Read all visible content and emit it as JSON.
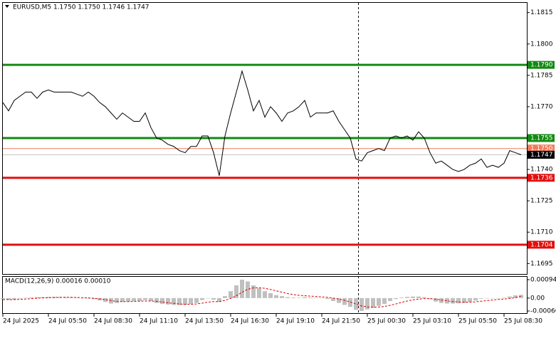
{
  "chart_data": [
    {
      "type": "line",
      "title": "EURUSD,M5  1.1750 1.1750 1.1746 1.1747",
      "color": "#000000",
      "categories": [
        "24 Jul 2025",
        null,
        null,
        null,
        null,
        null,
        null,
        null,
        "24 Jul 05:50",
        null,
        null,
        null,
        null,
        null,
        null,
        null,
        "24 Jul 08:30",
        null,
        null,
        null,
        null,
        null,
        null,
        null,
        "24 Jul 11:10",
        null,
        null,
        null,
        null,
        null,
        null,
        null,
        "24 Jul 13:50",
        null,
        null,
        null,
        null,
        null,
        null,
        null,
        "24 Jul 16:30",
        null,
        null,
        null,
        null,
        null,
        null,
        null,
        "24 Jul 19:10",
        null,
        null,
        null,
        null,
        null,
        null,
        null,
        "24 Jul 21:50",
        null,
        null,
        null,
        null,
        null,
        null,
        null,
        "25 Jul 00:30",
        null,
        null,
        null,
        null,
        null,
        null,
        null,
        "25 Jul 03:10",
        null,
        null,
        null,
        null,
        null,
        null,
        null,
        "25 Jul 05:50",
        null,
        null,
        null,
        null,
        null,
        null,
        null,
        "25 Jul 08:30",
        null,
        null,
        null
      ],
      "values": [
        1.1772,
        1.1768,
        1.1773,
        1.1775,
        1.1777,
        1.1777,
        1.1774,
        1.1777,
        1.1778,
        1.1777,
        1.1777,
        1.1777,
        1.1777,
        1.1776,
        1.1775,
        1.1777,
        1.1775,
        1.1772,
        1.177,
        1.1767,
        1.1764,
        1.1767,
        1.1765,
        1.1763,
        1.1763,
        1.1767,
        1.176,
        1.1755,
        1.1754,
        1.1752,
        1.1751,
        1.1749,
        1.1748,
        1.1751,
        1.1751,
        1.1756,
        1.1756,
        1.1748,
        1.1737,
        1.1756,
        1.1767,
        1.1777,
        1.1787,
        1.1778,
        1.1768,
        1.1773,
        1.1765,
        1.177,
        1.1767,
        1.1763,
        1.1767,
        1.1768,
        1.177,
        1.1773,
        1.1765,
        1.1767,
        1.1767,
        1.1767,
        1.1768,
        1.1763,
        1.1759,
        1.1755,
        1.1745,
        1.1744,
        1.1748,
        1.1749,
        1.175,
        1.1749,
        1.1755,
        1.1756,
        1.1755,
        1.1756,
        1.1754,
        1.1758,
        1.1755,
        1.1748,
        1.1743,
        1.1744,
        1.1742,
        1.174,
        1.1739,
        1.174,
        1.1742,
        1.1743,
        1.1745,
        1.1741,
        1.1742,
        1.1741,
        1.1743,
        1.1749,
        1.1748,
        1.1747
      ],
      "ylim": [
        1.169,
        1.182
      ],
      "yticks": [
        1.1815,
        {
          "value": 1.18,
          "label": "1.1800"
        },
        1.1785,
        {
          "value": 1.177,
          "label": "1.1770"
        },
        1.1755,
        {
          "value": 1.174,
          "label": "1.1740"
        },
        1.1725,
        {
          "value": 1.171,
          "label": "1.1710"
        },
        1.1695
      ],
      "levels": [
        {
          "value": 1.179,
          "label": "1.1790",
          "color": "#138a13",
          "thick": true
        },
        {
          "value": 1.1755,
          "label": "1.1755",
          "color": "#138a13",
          "thick": true
        },
        {
          "value": 1.175,
          "label": "1.1750",
          "color": "#f07a5a",
          "thick": false
        },
        {
          "value": 1.1747,
          "label": "1.1747",
          "color": "#c8c8c8",
          "box_color": "#000000",
          "thick": false
        },
        {
          "value": 1.1736,
          "label": "1.1736",
          "color": "#e01010",
          "thick": true
        },
        {
          "value": 1.1704,
          "label": "1.1704",
          "color": "#e01010",
          "thick": true
        }
      ]
    },
    {
      "type": "bar",
      "title": "MACD(12,26,9) 0.00016 0.00010",
      "color": "#c0c0c0",
      "signal_color": "#e00000",
      "values": [
        -5e-05,
        -0.0001,
        -8e-05,
        -3e-05,
        2e-05,
        4e-05,
        5e-05,
        5e-05,
        6e-05,
        6e-05,
        5e-05,
        4e-05,
        3e-05,
        2e-05,
        0,
        -3e-05,
        -6e-05,
        -0.00012,
        -0.0002,
        -0.00028,
        -0.00025,
        -0.0002,
        -0.00018,
        -0.00015,
        -0.00015,
        -0.0001,
        -0.00015,
        -0.00025,
        -0.0003,
        -0.00033,
        -0.00035,
        -0.00036,
        -0.00035,
        -0.0003,
        -0.00025,
        -0.0001,
        0,
        -8e-05,
        -0.0002,
        0.0001,
        0.00035,
        0.00065,
        0.00094,
        0.00085,
        0.00065,
        0.0005,
        0.00035,
        0.00025,
        0.00015,
        0.0001,
        5e-05,
        3e-05,
        2e-05,
        5e-05,
        3e-05,
        2e-05,
        0,
        -5e-05,
        -0.00015,
        -0.00025,
        -0.00035,
        -0.00045,
        -0.0006,
        -0.00066,
        -0.00058,
        -0.0005,
        -0.0004,
        -0.0003,
        -0.00015,
        -5e-05,
        3e-05,
        6e-05,
        8e-05,
        8e-05,
        5e-05,
        -5e-05,
        -0.00018,
        -0.00025,
        -0.00028,
        -0.00028,
        -0.00027,
        -0.00025,
        -0.0002,
        -0.00012,
        -3e-05,
        -2e-05,
        0,
        -2e-05,
        2e-05,
        8e-05,
        0.00014,
        0.00016
      ],
      "signal": [
        -8e-05,
        -8e-05,
        -8e-05,
        -7e-05,
        -5e-05,
        -3e-05,
        -1e-05,
        1e-05,
        2e-05,
        3e-05,
        4e-05,
        4e-05,
        4e-05,
        3e-05,
        2e-05,
        1e-05,
        -1e-05,
        -4e-05,
        -8e-05,
        -0.00013,
        -0.00017,
        -0.00018,
        -0.00018,
        -0.00017,
        -0.00016,
        -0.00015,
        -0.00015,
        -0.00017,
        -0.0002,
        -0.00024,
        -0.00027,
        -0.0003,
        -0.00032,
        -0.00032,
        -0.0003,
        -0.00026,
        -0.00021,
        -0.00018,
        -0.00018,
        -0.00012,
        -2e-05,
        0.00012,
        0.0003,
        0.00045,
        0.00052,
        0.00053,
        0.0005,
        0.00044,
        0.00037,
        0.0003,
        0.00023,
        0.00018,
        0.00014,
        0.00012,
        0.0001,
        8e-05,
        6e-05,
        4e-05,
        0,
        -5e-05,
        -0.00012,
        -0.0002,
        -0.0003,
        -0.0004,
        -0.00045,
        -0.00047,
        -0.00046,
        -0.00043,
        -0.00037,
        -0.0003,
        -0.00022,
        -0.00015,
        -9e-05,
        -5e-05,
        -3e-05,
        -3e-05,
        -6e-05,
        -0.0001,
        -0.00014,
        -0.00018,
        -0.0002,
        -0.00021,
        -0.00021,
        -0.00019,
        -0.00016,
        -0.00013,
        -0.0001,
        -7e-05,
        -5e-05,
        -2e-05,
        2e-05,
        0.0001
      ],
      "ylim": [
        -0.00066,
        0.00094
      ],
      "yticks": [
        0.00094,
        {
          "value": 0,
          "label": "0.00"
        },
        -0.00066
      ]
    }
  ]
}
